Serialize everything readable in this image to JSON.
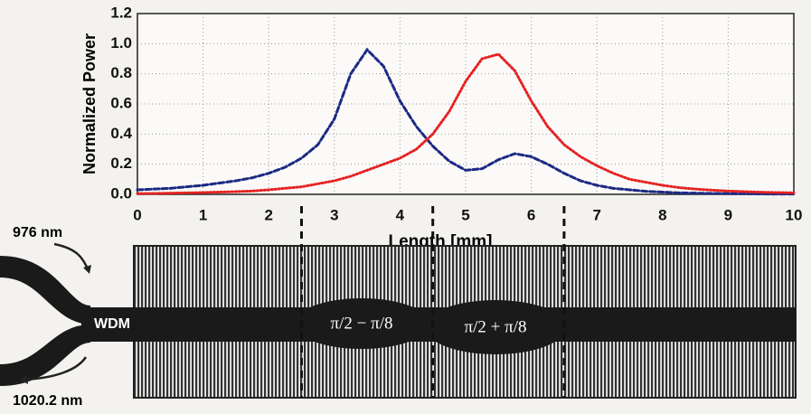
{
  "chart_data": {
    "type": "line",
    "xlabel": "Length [mm]",
    "ylabel": "Normalized Power",
    "x": [
      0,
      0.25,
      0.5,
      0.75,
      1,
      1.25,
      1.5,
      1.75,
      2,
      2.25,
      2.5,
      2.75,
      3,
      3.25,
      3.5,
      3.75,
      4,
      4.25,
      4.5,
      4.75,
      5,
      5.25,
      5.5,
      5.75,
      6,
      6.25,
      6.5,
      6.75,
      7,
      7.25,
      7.5,
      7.75,
      8,
      8.25,
      8.5,
      8.75,
      9,
      9.25,
      9.5,
      9.75,
      10
    ],
    "series": [
      {
        "color": "#1c2a84",
        "style": "dashed",
        "values": [
          0.03,
          0.035,
          0.04,
          0.05,
          0.06,
          0.075,
          0.09,
          0.11,
          0.14,
          0.18,
          0.24,
          0.33,
          0.5,
          0.8,
          0.96,
          0.85,
          0.62,
          0.45,
          0.32,
          0.22,
          0.16,
          0.17,
          0.23,
          0.27,
          0.25,
          0.2,
          0.14,
          0.09,
          0.06,
          0.04,
          0.03,
          0.02,
          0.015,
          0.01,
          0.008,
          0.006,
          0.005,
          0.004,
          0.003,
          0.002,
          0.002
        ]
      },
      {
        "color": "#e52222",
        "style": "dotted",
        "values": [
          0.005,
          0.006,
          0.008,
          0.01,
          0.012,
          0.015,
          0.018,
          0.022,
          0.03,
          0.04,
          0.05,
          0.07,
          0.09,
          0.12,
          0.16,
          0.2,
          0.24,
          0.3,
          0.4,
          0.55,
          0.75,
          0.9,
          0.93,
          0.82,
          0.62,
          0.45,
          0.33,
          0.25,
          0.19,
          0.14,
          0.1,
          0.08,
          0.06,
          0.045,
          0.035,
          0.028,
          0.022,
          0.018,
          0.014,
          0.012,
          0.01
        ]
      }
    ],
    "xlim": [
      0,
      10
    ],
    "xticks": [
      0,
      1,
      2,
      3,
      4,
      5,
      6,
      7,
      8,
      9,
      10
    ],
    "ylim": [
      0,
      1.2
    ],
    "yticks": [
      {
        "value": 0,
        "label": "0.0"
      },
      0.2,
      0.4,
      0.6,
      0.8,
      {
        "value": 1,
        "label": "1.0"
      },
      1.2
    ],
    "grid": true,
    "section_boundaries": [
      2.5,
      4.5,
      6.5
    ]
  },
  "diagram": {
    "input": "976 nm",
    "output": "1020.2 nm",
    "coupler": "WDM",
    "sections": [
      "π/2 − π/8",
      "π/2 + π/8"
    ]
  }
}
